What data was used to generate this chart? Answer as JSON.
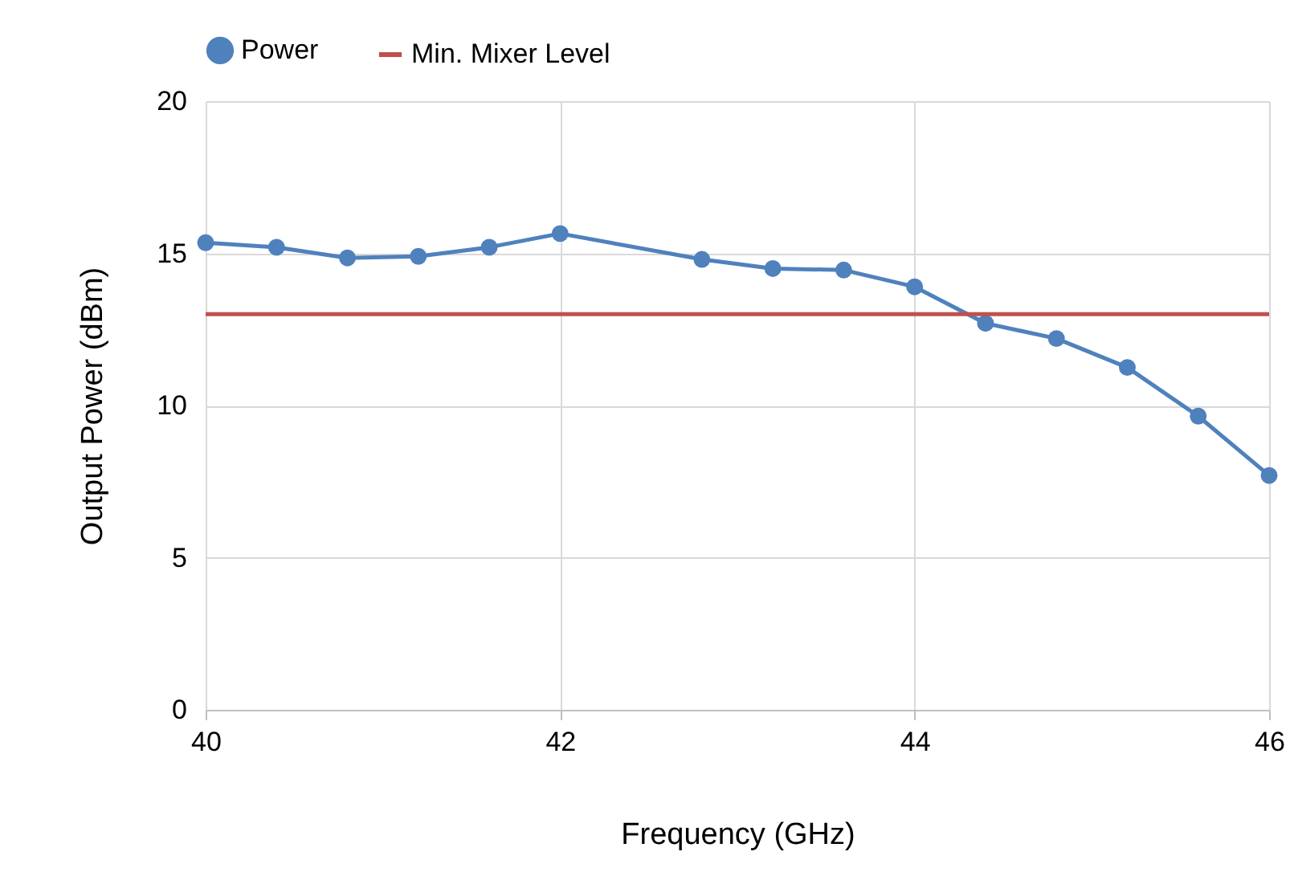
{
  "chart_data": {
    "type": "line",
    "xlabel": "Frequency (GHz)",
    "ylabel": "Output Power (dBm)",
    "x": [
      40,
      40.4,
      40.8,
      41.2,
      41.6,
      42,
      42.8,
      43.2,
      43.6,
      44,
      44.4,
      44.8,
      45.2,
      45.6,
      46
    ],
    "series": [
      {
        "name": "Power",
        "color": "#4f81bd",
        "values": [
          15.35,
          15.2,
          14.85,
          14.9,
          15.2,
          15.65,
          14.8,
          14.5,
          14.45,
          13.9,
          12.7,
          12.2,
          11.25,
          9.65,
          7.7
        ]
      }
    ],
    "ref_lines": [
      {
        "axis": "y",
        "value": 13,
        "label": "Min. Mixer Level",
        "color": "#c0504d"
      }
    ],
    "xlim": [
      40,
      46
    ],
    "xticks": [
      40,
      42,
      44,
      46
    ],
    "ylim": [
      0,
      20
    ],
    "yticks": [
      0,
      5,
      10,
      15,
      20
    ],
    "grid": true,
    "legend": "top",
    "marker": "circle",
    "line_style": "solid"
  }
}
